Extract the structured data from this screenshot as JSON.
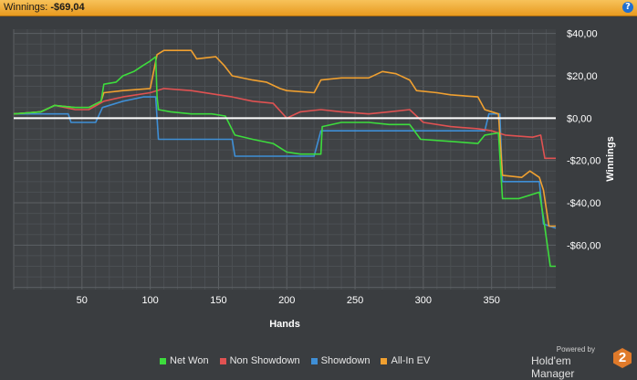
{
  "header": {
    "winnings_label": "Winnings:",
    "winnings_value": "-$69,04"
  },
  "legend": [
    {
      "name": "Net Won",
      "color": "#3ddc3d"
    },
    {
      "name": "Non Showdown",
      "color": "#e05252"
    },
    {
      "name": "Showdown",
      "color": "#3f8fd6"
    },
    {
      "name": "All-In EV",
      "color": "#f0a030"
    }
  ],
  "brand": {
    "powered": "Powered by",
    "name": "Hold'em Manager"
  },
  "chart_data": {
    "type": "line",
    "xlabel": "Hands",
    "ylabel": "Winnings",
    "xlim": [
      0,
      397
    ],
    "ylim": [
      -81,
      42
    ],
    "x_ticks": [
      50,
      100,
      150,
      200,
      250,
      300,
      350
    ],
    "x_tick_labels": [
      "50",
      "100",
      "150",
      "200",
      "250",
      "300",
      "350"
    ],
    "y_ticks": [
      40,
      20,
      0,
      -20,
      -40,
      -60
    ],
    "y_tick_labels": [
      "$40,00",
      "$20,00",
      "$0,00",
      "-$20,00",
      "-$40,00",
      "-$60,00"
    ],
    "grid": true,
    "legend_position": "bottom",
    "series": [
      {
        "name": "Net Won",
        "color": "#3ddc3d",
        "points": [
          [
            0,
            2
          ],
          [
            20,
            3
          ],
          [
            30,
            6
          ],
          [
            45,
            5
          ],
          [
            55,
            5
          ],
          [
            64,
            8
          ],
          [
            66,
            16
          ],
          [
            75,
            17
          ],
          [
            80,
            20
          ],
          [
            88,
            22
          ],
          [
            95,
            25
          ],
          [
            100,
            27
          ],
          [
            104,
            29
          ],
          [
            105,
            10
          ],
          [
            106,
            4
          ],
          [
            115,
            3
          ],
          [
            130,
            2
          ],
          [
            145,
            2
          ],
          [
            155,
            1
          ],
          [
            162,
            -8
          ],
          [
            175,
            -10
          ],
          [
            190,
            -12
          ],
          [
            200,
            -16
          ],
          [
            210,
            -17
          ],
          [
            225,
            -17
          ],
          [
            226,
            -4
          ],
          [
            240,
            -2
          ],
          [
            260,
            -2
          ],
          [
            275,
            -3
          ],
          [
            290,
            -3
          ],
          [
            298,
            -10
          ],
          [
            320,
            -11
          ],
          [
            340,
            -12
          ],
          [
            345,
            -8
          ],
          [
            355,
            -7
          ],
          [
            358,
            -38
          ],
          [
            370,
            -38
          ],
          [
            385,
            -35
          ],
          [
            388,
            -47
          ],
          [
            393,
            -70
          ],
          [
            397,
            -70
          ]
        ]
      },
      {
        "name": "Non Showdown",
        "color": "#e05252",
        "points": [
          [
            0,
            2
          ],
          [
            20,
            3
          ],
          [
            30,
            6
          ],
          [
            45,
            4
          ],
          [
            55,
            4
          ],
          [
            66,
            8
          ],
          [
            80,
            10
          ],
          [
            100,
            12
          ],
          [
            110,
            14
          ],
          [
            130,
            13
          ],
          [
            150,
            11
          ],
          [
            160,
            10
          ],
          [
            175,
            8
          ],
          [
            190,
            7
          ],
          [
            200,
            0
          ],
          [
            210,
            3
          ],
          [
            225,
            4
          ],
          [
            240,
            3
          ],
          [
            260,
            2
          ],
          [
            275,
            3
          ],
          [
            290,
            4
          ],
          [
            300,
            -2
          ],
          [
            320,
            -4
          ],
          [
            340,
            -5
          ],
          [
            350,
            -6
          ],
          [
            360,
            -8
          ],
          [
            380,
            -9
          ],
          [
            386,
            -8
          ],
          [
            389,
            -19
          ],
          [
            397,
            -19
          ]
        ]
      },
      {
        "name": "Showdown",
        "color": "#3f8fd6",
        "points": [
          [
            0,
            2
          ],
          [
            40,
            2
          ],
          [
            42,
            -2
          ],
          [
            60,
            -2
          ],
          [
            65,
            5
          ],
          [
            80,
            8
          ],
          [
            95,
            10
          ],
          [
            104,
            10
          ],
          [
            106,
            -10
          ],
          [
            140,
            -10
          ],
          [
            160,
            -10
          ],
          [
            162,
            -18
          ],
          [
            220,
            -18
          ],
          [
            225,
            -6
          ],
          [
            260,
            -6
          ],
          [
            300,
            -6
          ],
          [
            345,
            -6
          ],
          [
            348,
            2
          ],
          [
            356,
            2
          ],
          [
            358,
            -30
          ],
          [
            385,
            -30
          ],
          [
            388,
            -50
          ],
          [
            397,
            -52
          ]
        ]
      },
      {
        "name": "All-In EV",
        "color": "#f0a030",
        "points": [
          [
            0,
            2
          ],
          [
            20,
            3
          ],
          [
            30,
            6
          ],
          [
            45,
            5
          ],
          [
            55,
            5
          ],
          [
            64,
            8
          ],
          [
            66,
            12
          ],
          [
            80,
            13
          ],
          [
            100,
            14
          ],
          [
            105,
            30
          ],
          [
            110,
            32
          ],
          [
            130,
            32
          ],
          [
            134,
            28
          ],
          [
            148,
            29
          ],
          [
            154,
            25
          ],
          [
            160,
            20
          ],
          [
            175,
            18
          ],
          [
            185,
            17
          ],
          [
            195,
            14
          ],
          [
            200,
            13
          ],
          [
            220,
            12
          ],
          [
            225,
            18
          ],
          [
            240,
            19
          ],
          [
            260,
            19
          ],
          [
            270,
            22
          ],
          [
            280,
            21
          ],
          [
            290,
            18
          ],
          [
            295,
            13
          ],
          [
            310,
            12
          ],
          [
            320,
            11
          ],
          [
            340,
            10
          ],
          [
            345,
            4
          ],
          [
            355,
            2
          ],
          [
            358,
            -27
          ],
          [
            372,
            -28
          ],
          [
            378,
            -25
          ],
          [
            385,
            -28
          ],
          [
            388,
            -34
          ],
          [
            392,
            -51
          ],
          [
            397,
            -51
          ]
        ]
      }
    ]
  }
}
